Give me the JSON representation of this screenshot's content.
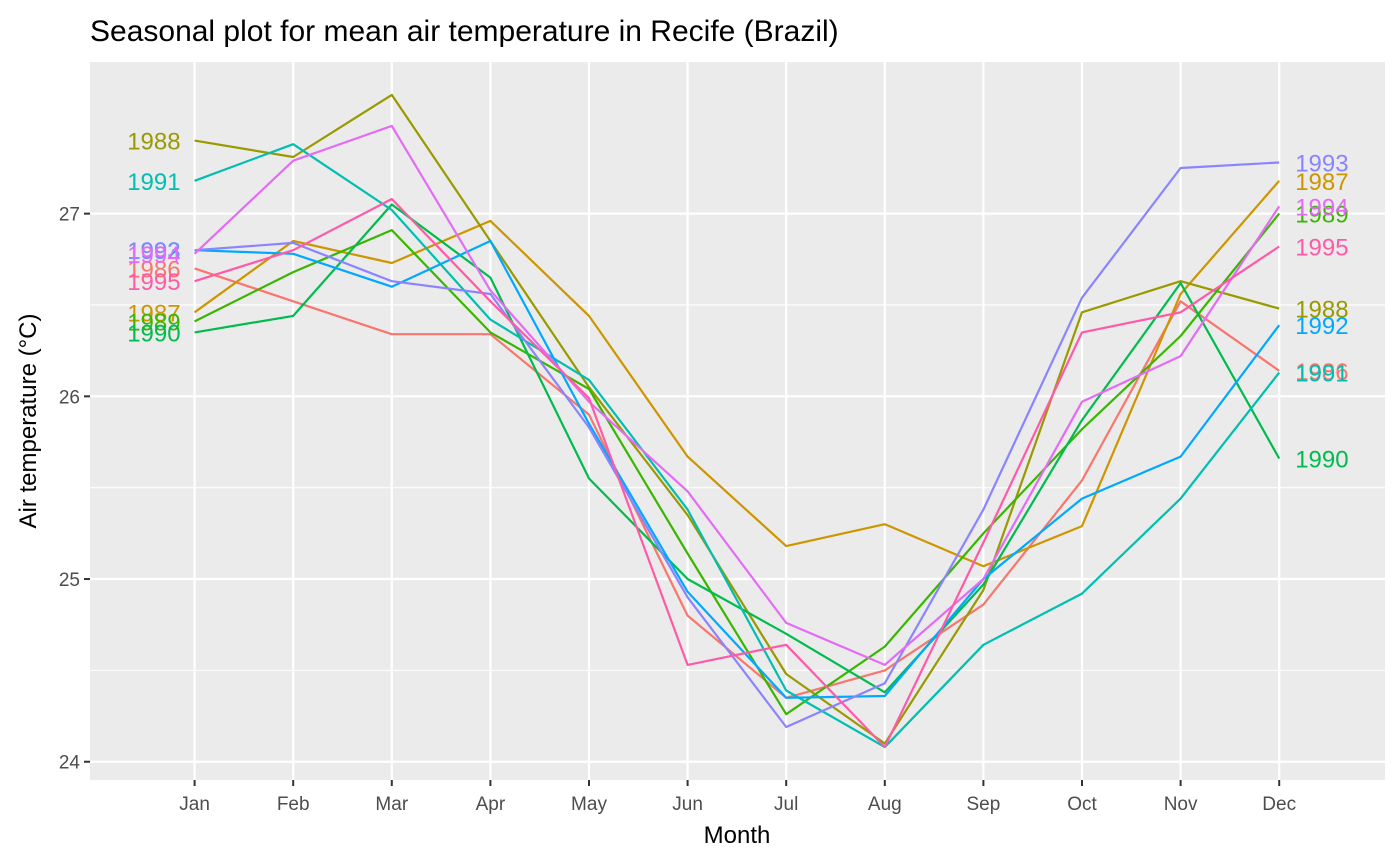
{
  "chart_data": {
    "type": "line",
    "title": "Seasonal plot for mean air temperature in Recife (Brazil)",
    "xlabel": "Month",
    "ylabel": "Air temperature (°C)",
    "categories": [
      "Jan",
      "Feb",
      "Mar",
      "Apr",
      "May",
      "Jun",
      "Jul",
      "Aug",
      "Sep",
      "Oct",
      "Nov",
      "Dec"
    ],
    "ylim": [
      23.9,
      27.83
    ],
    "yticks": [
      24,
      25,
      26,
      27
    ],
    "grid": true,
    "legend": "none (series labelled at both ends of each line)",
    "series": [
      {
        "name": "1986",
        "color": "#F8766D",
        "values": [
          26.7,
          26.52,
          26.34,
          26.34,
          25.9,
          24.8,
          24.35,
          24.5,
          24.86,
          25.54,
          26.52,
          26.14
        ]
      },
      {
        "name": "1987",
        "color": "#CD9600",
        "values": [
          26.46,
          26.85,
          26.73,
          26.96,
          26.44,
          25.67,
          25.18,
          25.3,
          25.07,
          25.29,
          26.56,
          27.18
        ]
      },
      {
        "name": "1988",
        "color": "#999900",
        "values": [
          27.4,
          27.31,
          27.65,
          26.85,
          26.05,
          25.35,
          24.48,
          24.1,
          24.94,
          26.46,
          26.63,
          26.48
        ]
      },
      {
        "name": "1989",
        "color": "#39B600",
        "values": [
          26.41,
          26.68,
          26.91,
          26.35,
          26.04,
          25.14,
          24.26,
          24.63,
          25.25,
          25.82,
          26.33,
          27.0
        ]
      },
      {
        "name": "1990",
        "color": "#00BB4E",
        "values": [
          26.35,
          26.44,
          27.05,
          26.65,
          25.55,
          25.0,
          24.7,
          24.38,
          24.97,
          25.87,
          26.62,
          25.66
        ]
      },
      {
        "name": "1991",
        "color": "#00BFB0",
        "values": [
          27.18,
          27.38,
          27.02,
          26.42,
          26.09,
          25.38,
          24.39,
          24.08,
          24.64,
          24.92,
          25.44,
          26.13
        ]
      },
      {
        "name": "1992",
        "color": "#00A9FF",
        "values": [
          26.8,
          26.78,
          26.6,
          26.85,
          25.85,
          24.93,
          24.35,
          24.36,
          25.0,
          25.44,
          25.67,
          26.39
        ]
      },
      {
        "name": "1993",
        "color": "#8A84FF",
        "values": [
          26.8,
          26.84,
          26.63,
          26.56,
          25.83,
          24.9,
          24.19,
          24.43,
          25.38,
          26.54,
          27.25,
          27.28
        ]
      },
      {
        "name": "1994",
        "color": "#E46BF6",
        "values": [
          26.78,
          27.29,
          27.48,
          26.58,
          25.97,
          25.48,
          24.76,
          24.53,
          25.0,
          25.97,
          26.22,
          27.04
        ]
      },
      {
        "name": "1995",
        "color": "#FF5AA8",
        "values": [
          26.63,
          26.8,
          27.08,
          26.52,
          25.99,
          24.53,
          24.64,
          24.08,
          25.2,
          26.35,
          26.46,
          26.82
        ]
      }
    ]
  }
}
